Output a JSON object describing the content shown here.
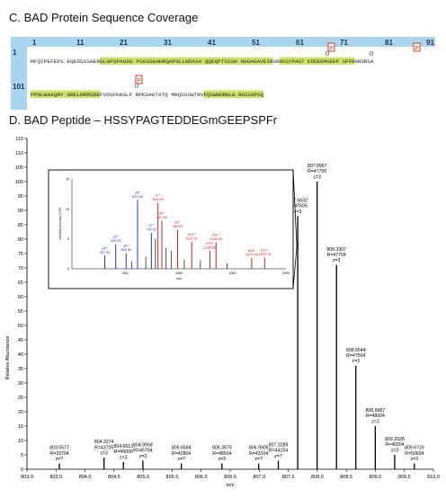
{
  "sectionC": {
    "letter": "C.",
    "title": "BAD Protein Sequence Coverage",
    "ruler": [
      "1",
      "11",
      "21",
      "31",
      "41",
      "51",
      "61",
      "71",
      "81",
      "91"
    ],
    "row_numbers": [
      "1",
      "101"
    ],
    "row1_segments": [
      {
        "text": "MFQIPEFEPS EQEDSSSAER ",
        "hl": false
      },
      {
        "text": "GLGPSPAGDG PSGSGKHHRQ ",
        "hl": true
      },
      {
        "text": "APGLLWDASH QQEQPTSSSH HGGAGAVEIR ",
        "hl": true
      },
      {
        "text": "SR",
        "hl": false
      },
      {
        "text": "HSSYPAGT EDDEGMGEEP SPFR",
        "hl": true
      },
      {
        "text": "GRSRSA",
        "hl": false
      }
    ],
    "row2_segments": [
      {
        "text": "PPNLWAAQRY GRELRRMSDE ",
        "hl": true
      },
      {
        "text": "FVDSFKKGLP RPKSAGTATQ MRQSSSWTRV ",
        "hl": false
      },
      {
        "text": "FQSWWDRNLG RGSSAPSQ",
        "hl": true
      }
    ],
    "mod_markers": [
      "P",
      "P",
      "P",
      "O",
      "O",
      "O"
    ]
  },
  "sectionD": {
    "letter": "D.",
    "title": "BAD Peptide – HSSYPAGTEDDEGmGEEPSPFr"
  },
  "chart_data": [
    {
      "type": "line",
      "title": "",
      "xlabel": "m/z",
      "ylabel": "Relative Abundance",
      "xlim": [
        803.0,
        810.0
      ],
      "ylim": [
        0,
        115
      ],
      "xticks": [
        "803.0",
        "803.5",
        "804.0",
        "804.5",
        "805.0",
        "805.5",
        "806.0",
        "806.5",
        "807.0",
        "807.5",
        "808.0",
        "808.5",
        "809.0",
        "809.5",
        "810.0"
      ],
      "yticks": [
        "0",
        "5",
        "10",
        "15",
        "20",
        "25",
        "30",
        "35",
        "40",
        "45",
        "50",
        "55",
        "60",
        "65",
        "70",
        "75",
        "80",
        "85",
        "90",
        "95",
        "100",
        "105",
        "110",
        "115"
      ],
      "peaks": [
        {
          "mz": 803.5577,
          "intensity": 2,
          "labels": [
            "803.5577",
            "R=33704",
            "z=?"
          ]
        },
        {
          "mz": 804.3274,
          "intensity": 4,
          "labels": [
            "804.3274",
            "R=43705",
            "z=3"
          ]
        },
        {
          "mz": 804.6613,
          "intensity": 2.5,
          "labels": [
            "804.6613",
            "R=45000",
            "z=3"
          ]
        },
        {
          "mz": 804.9958,
          "intensity": 3,
          "labels": [
            "804.9958",
            "R=46704",
            "z=3"
          ]
        },
        {
          "mz": 805.6584,
          "intensity": 2,
          "labels": [
            "805.6584",
            "R=42804",
            "z=?"
          ]
        },
        {
          "mz": 806.3579,
          "intensity": 2,
          "labels": [
            "806.3579",
            "R=48504",
            "z=3"
          ]
        },
        {
          "mz": 806.9905,
          "intensity": 2,
          "labels": [
            "806.9905",
            "R=43104",
            "z=?"
          ]
        },
        {
          "mz": 807.3289,
          "intensity": 3,
          "labels": [
            "807.3289",
            "R=44104",
            "z=?"
          ]
        },
        {
          "mz": 807.6632,
          "intensity": 88,
          "labels": [
            "807.6632",
            "R=47605",
            "z=3"
          ]
        },
        {
          "mz": 807.9967,
          "intensity": 100,
          "labels": [
            "807.9967",
            "R=47700",
            "z=3"
          ]
        },
        {
          "mz": 808.3307,
          "intensity": 71,
          "labels": [
            "808.3307",
            "R=47704",
            "z=3"
          ]
        },
        {
          "mz": 808.6644,
          "intensity": 36,
          "labels": [
            "808.6644",
            "R=47504",
            "z=3"
          ]
        },
        {
          "mz": 808.9987,
          "intensity": 15,
          "labels": [
            "808.9987",
            "R=48004",
            "z=3"
          ]
        },
        {
          "mz": 809.3328,
          "intensity": 5,
          "labels": [
            "809.3328",
            "R=48204",
            "z=3"
          ]
        },
        {
          "mz": 809.6719,
          "intensity": 2,
          "labels": [
            "809.6719",
            "R=50604",
            "z=3"
          ]
        }
      ]
    },
    {
      "type": "bar",
      "title": "",
      "xlabel": "m/z",
      "ylabel": "Intensity [counts] (10^5)",
      "xlim": [
        0,
        2000
      ],
      "ylim": [
        0,
        15
      ],
      "xticks": [
        "500",
        "1000",
        "1500",
        "2000"
      ],
      "yticks": [
        "0",
        "5",
        "10",
        "15"
      ],
      "peaks": [
        {
          "mz": 307.34,
          "intensity": 2.2,
          "label": "y3²⁺ 307.34",
          "color": "#2233bb"
        },
        {
          "mz": 409.28,
          "intensity": 4.1,
          "label": "y3⁺ 409.28",
          "color": "#2233bb"
        },
        {
          "mz": 506.34,
          "intensity": 2.6,
          "label": "y4⁺ 506.34",
          "color": "#2233bb"
        },
        {
          "mz": 613.35,
          "intensity": 11.5,
          "label": "y5⁺ 613.35",
          "color": "#2233bb"
        },
        {
          "mz": 742.37,
          "intensity": 6.0,
          "label": "y7⁺ 742.37",
          "color": "#2233bb"
        },
        {
          "mz": 804.04,
          "intensity": 11.0,
          "label": "b7⁺ 804.04",
          "color": "#cc2222"
        },
        {
          "mz": 840.59,
          "intensity": 8.0,
          "label": "b8⁺ 840.59",
          "color": "#cc2222"
        },
        {
          "mz": 986.92,
          "intensity": 6.5,
          "label": "b9⁺ 986.92",
          "color": "#cc2222"
        },
        {
          "mz": 1119.32,
          "intensity": 4.5,
          "label": "b12⁺ 1119.32",
          "color": "#cc2222"
        },
        {
          "mz": 1289.59,
          "intensity": 3.0,
          "label": "b13⁺ 1289.59",
          "color": "#cc2222"
        },
        {
          "mz": 1346.44,
          "intensity": 4.4,
          "label": "b14⁺ 1346.44",
          "color": "#cc2222"
        },
        {
          "mz": 1679.59,
          "intensity": 1.8,
          "label": "b18⁺ 1679.59",
          "color": "#cc2222"
        },
        {
          "mz": 1800.76,
          "intensity": 1.9,
          "label": "b19⁺ 1800.76",
          "color": "#cc2222"
        }
      ],
      "minor_peaks": [
        {
          "mz": 560,
          "intensity": 1.2
        },
        {
          "mz": 690,
          "intensity": 2.0
        },
        {
          "mz": 780,
          "intensity": 5.0
        },
        {
          "mz": 880,
          "intensity": 3.5
        },
        {
          "mz": 930,
          "intensity": 3.0
        },
        {
          "mz": 1050,
          "intensity": 1.5
        },
        {
          "mz": 1200,
          "intensity": 1.4
        },
        {
          "mz": 1450,
          "intensity": 0.9
        }
      ]
    }
  ]
}
